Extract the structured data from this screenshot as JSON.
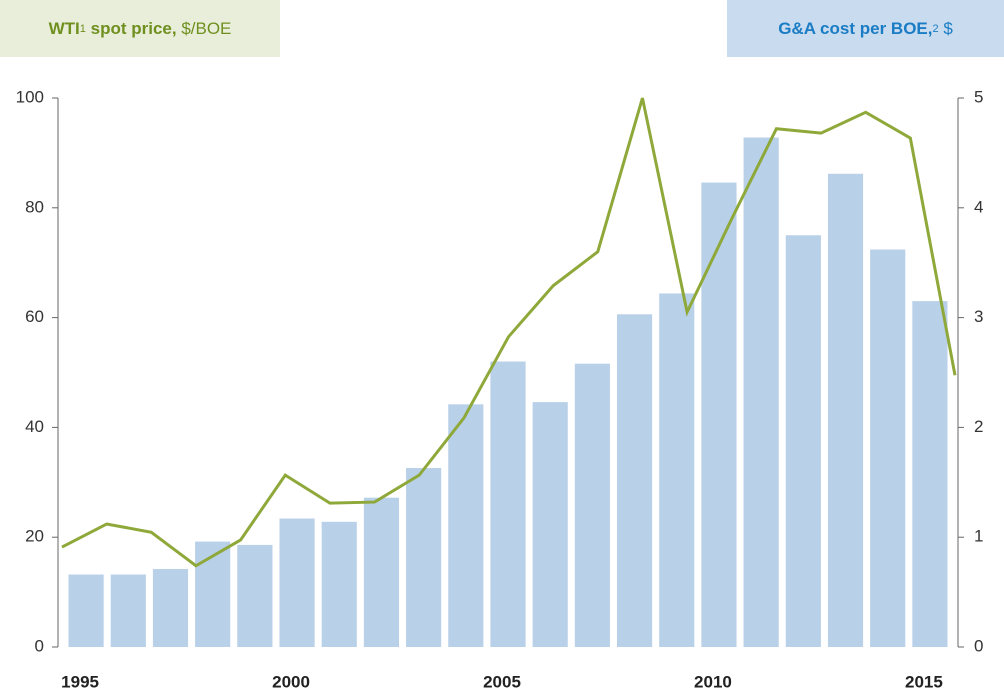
{
  "chart_data": {
    "type": "bar_line",
    "categories": [
      "1995",
      null,
      null,
      null,
      null,
      "2000",
      null,
      null,
      null,
      null,
      "2005",
      null,
      null,
      null,
      null,
      "2010",
      null,
      null,
      null,
      null,
      "2015"
    ],
    "series": [
      {
        "name": "WTI",
        "superscript": "1",
        "label": "spot price,",
        "unit": "$/BOE",
        "type": "line",
        "color": "#8fa83a",
        "values": [
          18.2,
          22.4,
          20.9,
          14.8,
          19.5,
          31.3,
          26.2,
          26.4,
          31.3,
          41.7,
          56.5,
          65.8,
          72.0,
          100,
          61.0,
          78.0,
          94.4,
          93.6,
          97.4,
          92.7,
          49.5
        ]
      },
      {
        "name": "G&A cost per BOE,",
        "superscript": "2",
        "unit": "$",
        "type": "bar",
        "axis": "y2",
        "color": "#b8d0e8",
        "values": [
          0.66,
          0.66,
          0.71,
          0.96,
          0.93,
          1.17,
          1.14,
          1.36,
          1.63,
          2.21,
          2.6,
          2.23,
          2.58,
          3.03,
          3.22,
          4.23,
          4.64,
          3.75,
          4.31,
          3.62,
          3.15
        ]
      }
    ],
    "ylim": [
      0,
      100
    ],
    "yticks": [
      0,
      20,
      40,
      60,
      80,
      100
    ],
    "y2lim": [
      0,
      5
    ],
    "y2ticks": [
      0,
      1,
      2,
      3,
      4,
      5
    ]
  }
}
